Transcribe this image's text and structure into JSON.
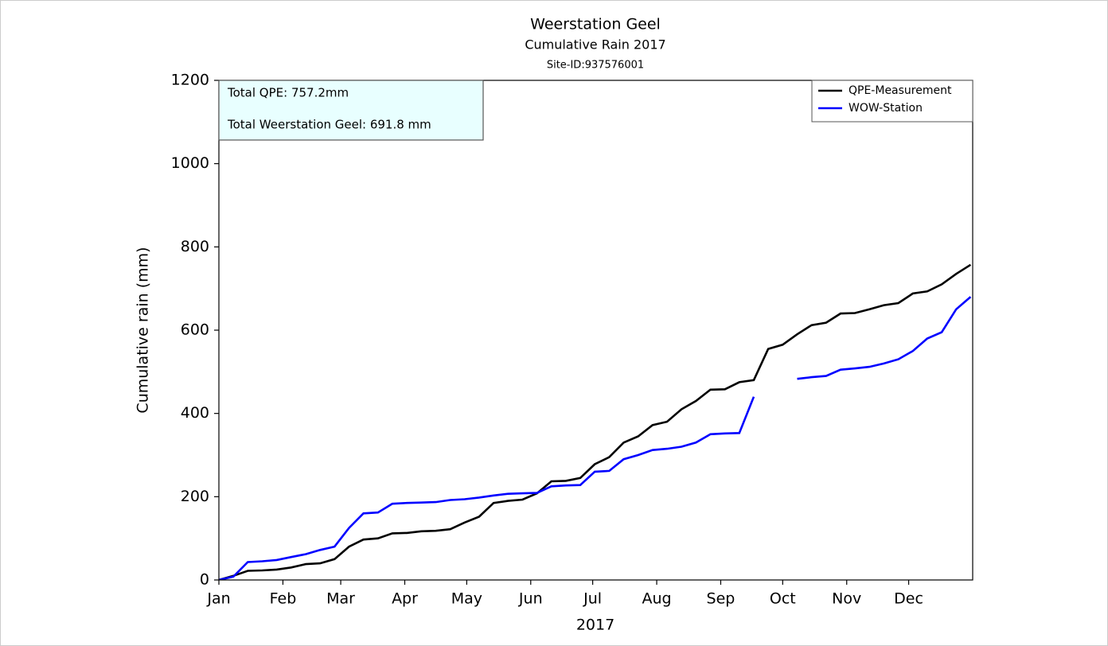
{
  "chart_data": {
    "type": "line",
    "title": "Weerstation Geel",
    "subtitle": "Cumulative Rain 2017",
    "site": "Site-ID:937576001",
    "xlabel": "2017",
    "ylabel": "Cumulative rain (mm)",
    "annotations": [
      "Total QPE: 757.2mm",
      "Total Weerstation Geel: 691.8 mm"
    ],
    "legend": "upper right",
    "xlim": [
      0,
      365
    ],
    "ylim": [
      0,
      1200
    ],
    "yticks": [
      0,
      200,
      400,
      600,
      800,
      1000,
      1200
    ],
    "xticks": [
      {
        "value": 0,
        "label": "Jan"
      },
      {
        "value": 31,
        "label": "Feb"
      },
      {
        "value": 59,
        "label": "Mar"
      },
      {
        "value": 90,
        "label": "Apr"
      },
      {
        "value": 120,
        "label": "May"
      },
      {
        "value": 151,
        "label": "Jun"
      },
      {
        "value": 181,
        "label": "Jul"
      },
      {
        "value": 212,
        "label": "Aug"
      },
      {
        "value": 243,
        "label": "Sep"
      },
      {
        "value": 273,
        "label": "Oct"
      },
      {
        "value": 304,
        "label": "Nov"
      },
      {
        "value": 334,
        "label": "Dec"
      }
    ],
    "x": [
      0,
      7,
      14,
      21,
      28,
      35,
      42,
      49,
      56,
      63,
      70,
      77,
      84,
      91,
      98,
      105,
      112,
      119,
      126,
      133,
      140,
      147,
      154,
      161,
      168,
      175,
      182,
      189,
      196,
      203,
      210,
      217,
      224,
      231,
      238,
      245,
      252,
      259,
      266,
      273,
      280,
      287,
      294,
      301,
      308,
      315,
      322,
      329,
      336,
      343,
      350,
      357,
      364
    ],
    "series": [
      {
        "name": "QPE-Measurement",
        "color": "#000000",
        "values": [
          0,
          10,
          22,
          23,
          25,
          30,
          38,
          40,
          50,
          80,
          97,
          100,
          112,
          113,
          117,
          118,
          122,
          138,
          152,
          185,
          190,
          193,
          208,
          237,
          238,
          245,
          278,
          295,
          330,
          345,
          372,
          380,
          410,
          430,
          457,
          458,
          475,
          480,
          555,
          565,
          590,
          612,
          618,
          640,
          641,
          650,
          660,
          665,
          688,
          693,
          710,
          735,
          757
        ]
      },
      {
        "name": "WOW-Station",
        "color": "#0000ff",
        "values": [
          0,
          8,
          43,
          45,
          48,
          55,
          62,
          72,
          80,
          125,
          160,
          162,
          183,
          185,
          186,
          187,
          192,
          194,
          198,
          203,
          207,
          208,
          209,
          225,
          227,
          228,
          260,
          262,
          290,
          300,
          312,
          315,
          320,
          330,
          350,
          352,
          353,
          440,
          null,
          null,
          483,
          487,
          490,
          505,
          508,
          512,
          520,
          530,
          550,
          580,
          595,
          650,
          680
        ]
      }
    ]
  }
}
